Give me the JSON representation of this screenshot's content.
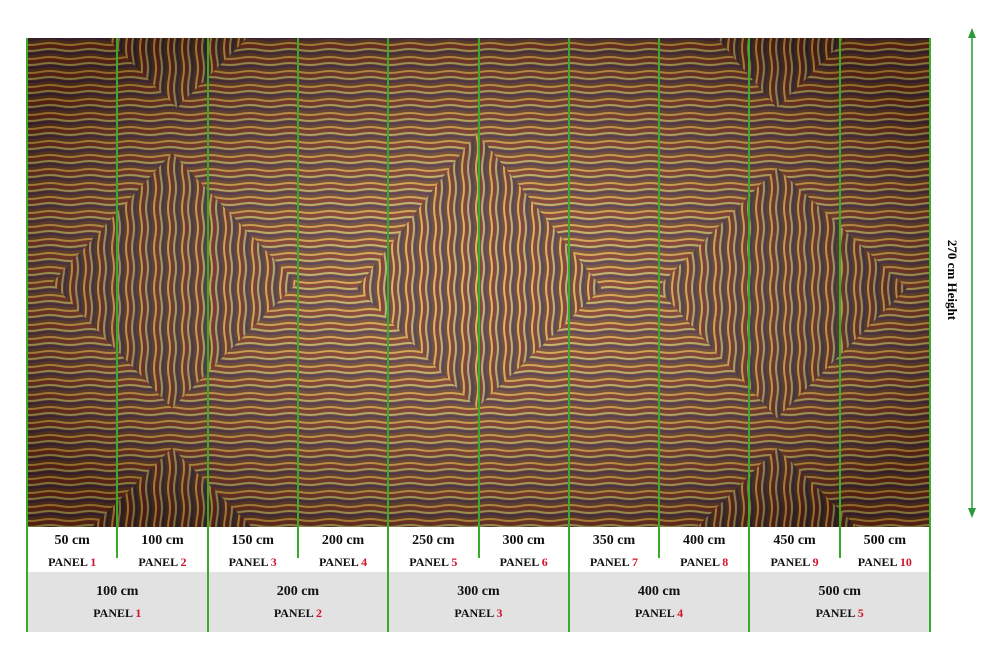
{
  "narrow_panels": [
    {
      "size": "50 cm",
      "label": "PANEL",
      "number": "1"
    },
    {
      "size": "100 cm",
      "label": "PANEL",
      "number": "2"
    },
    {
      "size": "150 cm",
      "label": "PANEL",
      "number": "3"
    },
    {
      "size": "200 cm",
      "label": "PANEL",
      "number": "4"
    },
    {
      "size": "250 cm",
      "label": "PANEL",
      "number": "5"
    },
    {
      "size": "300 cm",
      "label": "PANEL",
      "number": "6"
    },
    {
      "size": "350 cm",
      "label": "PANEL",
      "number": "7"
    },
    {
      "size": "400 cm",
      "label": "PANEL",
      "number": "8"
    },
    {
      "size": "450 cm",
      "label": "PANEL",
      "number": "9"
    },
    {
      "size": "500 cm",
      "label": "PANEL",
      "number": "10"
    }
  ],
  "wide_panels": [
    {
      "size": "100 cm",
      "label": "PANEL",
      "number": "1"
    },
    {
      "size": "200 cm",
      "label": "PANEL",
      "number": "2"
    },
    {
      "size": "300 cm",
      "label": "PANEL",
      "number": "3"
    },
    {
      "size": "400 cm",
      "label": "PANEL",
      "number": "4"
    },
    {
      "size": "500 cm",
      "label": "PANEL",
      "number": "5"
    }
  ],
  "height_label": "270 cm Height"
}
